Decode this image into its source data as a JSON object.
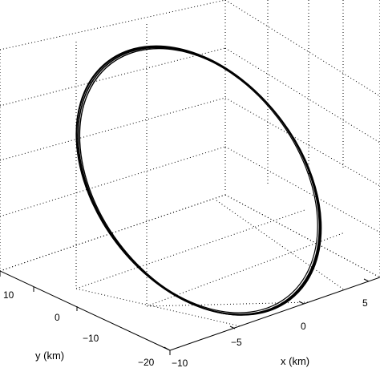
{
  "chart_data": {
    "type": "line",
    "projection": "3d",
    "grid": true,
    "grid_style": "dotted",
    "title": "",
    "xlabel": "x (km)",
    "ylabel": "y (km)",
    "zlabel": "",
    "xlim": [
      -10,
      5
    ],
    "ylim": [
      -20,
      10
    ],
    "x_ticks": [
      -10,
      -5,
      0,
      5
    ],
    "y_ticks": [
      -20,
      -10,
      0,
      10
    ],
    "x_tick_labels": [
      "−10",
      "−5",
      "0",
      "5"
    ],
    "y_tick_labels": [
      "−20",
      "−10",
      "0",
      "10"
    ],
    "series": [
      {
        "color": "#000000",
        "shape": "closed ellipse",
        "description_points": "elliptical orbit trace; repeated loops thicken the lower-right edge"
      }
    ]
  }
}
